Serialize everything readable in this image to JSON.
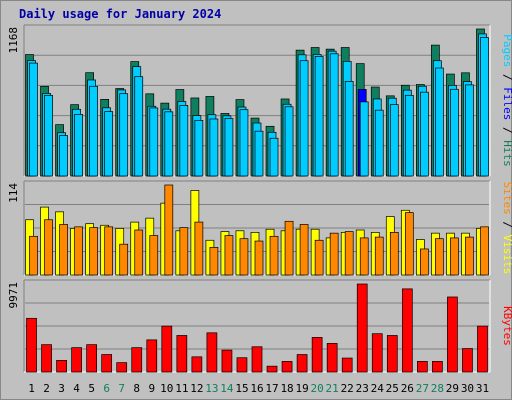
{
  "title": "Daily usage for January 2024",
  "colors": {
    "hits": "#0f7f5f",
    "files": "#00ccff",
    "files_highlight": "#0000ff",
    "visits": "#ffff00",
    "sites": "#ff8800",
    "kbytes": "#ff0000",
    "weekday_label": "#000000",
    "weekend_label": "#0f7f5f",
    "plot_bg": "#c0c0c0"
  },
  "chart_data": [
    {
      "type": "bar",
      "ymax_label": "1168",
      "ymax": 1168,
      "right_label": {
        "parts": [
          {
            "text": "Pages",
            "color": "#00ccff"
          },
          {
            "text": " / ",
            "color": "#000000"
          },
          {
            "text": "Files",
            "color": "#0000ff"
          },
          {
            "text": " / ",
            "color": "#000000"
          },
          {
            "text": "Hits",
            "color": "#0f7f5f"
          }
        ]
      },
      "series": [
        {
          "name": "Hits",
          "values": [
            965,
            712,
            408,
            567,
            821,
            609,
            695,
            909,
            653,
            579,
            687,
            620,
            632,
            497,
            607,
            460,
            395,
            612,
            1000,
            1021,
            1008,
            1021,
            893,
            707,
            637,
            721,
            727,
            1040,
            810,
            820,
            1168
          ]
        },
        {
          "name": "Files",
          "values": [
            917,
            656,
            344,
            530,
            763,
            542,
            684,
            869,
            554,
            531,
            592,
            480,
            487,
            478,
            548,
            421,
            347,
            570,
            963,
            966,
            992,
            911,
            688,
            612,
            618,
            682,
            713,
            916,
            720,
            750,
            1129
          ]
        },
        {
          "name": "Pages",
          "values": [
            897,
            641,
            321,
            489,
            713,
            512,
            654,
            789,
            541,
            510,
            561,
            442,
            453,
            457,
            527,
            356,
            300,
            550,
            916,
            950,
            971,
            752,
            589,
            523,
            567,
            641,
            666,
            858,
            689,
            724,
            1100
          ]
        }
      ],
      "highlight": {
        "day": 23,
        "color": "#0000ff"
      }
    },
    {
      "type": "bar",
      "ymax_label": "114",
      "ymax": 114,
      "right_label": {
        "parts": [
          {
            "text": "Sites",
            "color": "#ff8800"
          },
          {
            "text": " / ",
            "color": "#000000"
          },
          {
            "text": "Visits",
            "color": "#ffff00"
          }
        ]
      },
      "series": [
        {
          "name": "Visits",
          "values": [
            70,
            86,
            80,
            59,
            65,
            63,
            59,
            67,
            72,
            91,
            56,
            107,
            44,
            55,
            56,
            54,
            58,
            56,
            58,
            58,
            47,
            54,
            57,
            54,
            74,
            82,
            45,
            53,
            53,
            53,
            59
          ]
        },
        {
          "name": "Sites",
          "values": [
            49,
            70,
            64,
            61,
            60,
            61,
            39,
            57,
            50,
            114,
            60,
            67,
            35,
            50,
            46,
            43,
            49,
            68,
            64,
            44,
            53,
            55,
            47,
            48,
            54,
            79,
            33,
            46,
            47,
            48,
            61
          ]
        }
      ]
    },
    {
      "type": "bar",
      "ymax_label": "9971",
      "ymax": 9971,
      "right_label": {
        "parts": [
          {
            "text": "KBytes",
            "color": "#ff0000"
          }
        ]
      },
      "series": [
        {
          "name": "KBytes",
          "values": [
            6084,
            3100,
            1320,
            2760,
            3100,
            1980,
            1060,
            2760,
            3640,
            5200,
            4140,
            1720,
            4440,
            2480,
            1620,
            2860,
            660,
            1200,
            1980,
            3920,
            3240,
            1580,
            9971,
            4340,
            4140,
            9421,
            1200,
            1200,
            8501,
            2660,
            5200
          ]
        }
      ]
    }
  ],
  "x_labels": [
    "1",
    "2",
    "3",
    "4",
    "5",
    "6",
    "7",
    "8",
    "9",
    "10",
    "11",
    "12",
    "13",
    "14",
    "15",
    "16",
    "17",
    "18",
    "19",
    "20",
    "21",
    "22",
    "23",
    "24",
    "25",
    "26",
    "27",
    "28",
    "29",
    "30",
    "31"
  ],
  "weekend_days": [
    6,
    7,
    13,
    14,
    20,
    21,
    27,
    28
  ]
}
